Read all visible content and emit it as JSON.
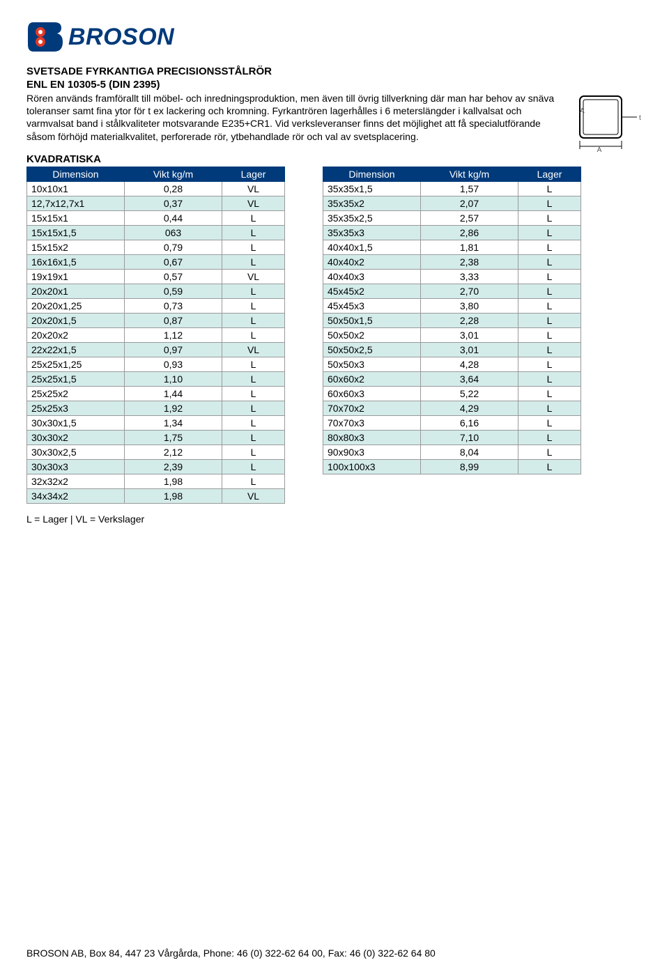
{
  "logo": {
    "text": "BROSON"
  },
  "title": "SVETSADE FYRKANTIGA PRECISIONSSTÅLRÖR",
  "subtitle": "ENL EN 10305-5 (DIN 2395)",
  "intro": "Rören används framförallt till möbel- och inredningsproduktion, men även till övrig tillverkning där man har behov av snäva toleranser samt fina ytor för t ex lackering och kromning. Fyrkantrören lagerhålles i 6 meterslängder i kallvalsat och varmvalsat band i stålkvaliteter motsvarande E235+CR1. Vid verksleveranser finns det möjlighet att få specialutförande såsom förhöjd materialkvalitet, perforerade rör, ytbehandlade rör och val av svetsplacering.",
  "sectionHead": "KVADRATISKA",
  "columns": {
    "dim": "Dimension",
    "vikt": "Vikt kg/m",
    "lager": "Lager"
  },
  "legend": "L = Lager | VL = Verkslager",
  "footer": "BROSON AB, Box 84, 447 23 Vårgårda, Phone:  46 (0) 322-62 64 00, Fax:  46 (0) 322-62 64 80",
  "colors": {
    "headerBg": "#003a7a",
    "headerText": "#ffffff",
    "altRow": "#d3ecea",
    "border": "#999999"
  },
  "diagramLabels": {
    "a": "A",
    "t": "t"
  },
  "leftRows": [
    {
      "dim": "10x10x1",
      "vikt": "0,28",
      "lager": "VL"
    },
    {
      "dim": "12,7x12,7x1",
      "vikt": "0,37",
      "lager": "VL"
    },
    {
      "dim": "15x15x1",
      "vikt": "0,44",
      "lager": "L"
    },
    {
      "dim": "15x15x1,5",
      "vikt": "063",
      "lager": "L"
    },
    {
      "dim": "15x15x2",
      "vikt": "0,79",
      "lager": "L"
    },
    {
      "dim": "16x16x1,5",
      "vikt": "0,67",
      "lager": "L"
    },
    {
      "dim": "19x19x1",
      "vikt": "0,57",
      "lager": "VL"
    },
    {
      "dim": "20x20x1",
      "vikt": "0,59",
      "lager": "L"
    },
    {
      "dim": "20x20x1,25",
      "vikt": "0,73",
      "lager": "L"
    },
    {
      "dim": "20x20x1,5",
      "vikt": "0,87",
      "lager": "L"
    },
    {
      "dim": "20x20x2",
      "vikt": "1,12",
      "lager": "L"
    },
    {
      "dim": "22x22x1,5",
      "vikt": "0,97",
      "lager": "VL"
    },
    {
      "dim": "25x25x1,25",
      "vikt": "0,93",
      "lager": "L"
    },
    {
      "dim": "25x25x1,5",
      "vikt": "1,10",
      "lager": "L"
    },
    {
      "dim": "25x25x2",
      "vikt": "1,44",
      "lager": "L"
    },
    {
      "dim": "25x25x3",
      "vikt": "1,92",
      "lager": "L"
    },
    {
      "dim": "30x30x1,5",
      "vikt": "1,34",
      "lager": "L"
    },
    {
      "dim": "30x30x2",
      "vikt": "1,75",
      "lager": "L"
    },
    {
      "dim": "30x30x2,5",
      "vikt": "2,12",
      "lager": "L"
    },
    {
      "dim": "30x30x3",
      "vikt": "2,39",
      "lager": "L"
    },
    {
      "dim": "32x32x2",
      "vikt": "1,98",
      "lager": "L"
    },
    {
      "dim": "34x34x2",
      "vikt": "1,98",
      "lager": "VL"
    }
  ],
  "rightRows": [
    {
      "dim": "35x35x1,5",
      "vikt": "1,57",
      "lager": "L"
    },
    {
      "dim": "35x35x2",
      "vikt": "2,07",
      "lager": "L"
    },
    {
      "dim": "35x35x2,5",
      "vikt": "2,57",
      "lager": "L"
    },
    {
      "dim": "35x35x3",
      "vikt": "2,86",
      "lager": "L"
    },
    {
      "dim": "40x40x1,5",
      "vikt": "1,81",
      "lager": "L"
    },
    {
      "dim": "40x40x2",
      "vikt": "2,38",
      "lager": "L"
    },
    {
      "dim": "40x40x3",
      "vikt": "3,33",
      "lager": "L"
    },
    {
      "dim": "45x45x2",
      "vikt": "2,70",
      "lager": "L"
    },
    {
      "dim": "45x45x3",
      "vikt": "3,80",
      "lager": "L"
    },
    {
      "dim": "50x50x1,5",
      "vikt": "2,28",
      "lager": "L"
    },
    {
      "dim": "50x50x2",
      "vikt": "3,01",
      "lager": "L"
    },
    {
      "dim": "50x50x2,5",
      "vikt": "3,01",
      "lager": "L"
    },
    {
      "dim": "50x50x3",
      "vikt": "4,28",
      "lager": "L"
    },
    {
      "dim": "60x60x2",
      "vikt": "3,64",
      "lager": "L"
    },
    {
      "dim": "60x60x3",
      "vikt": "5,22",
      "lager": "L"
    },
    {
      "dim": "70x70x2",
      "vikt": "4,29",
      "lager": "L"
    },
    {
      "dim": "70x70x3",
      "vikt": "6,16",
      "lager": "L"
    },
    {
      "dim": "80x80x3",
      "vikt": "7,10",
      "lager": "L"
    },
    {
      "dim": "90x90x3",
      "vikt": "8,04",
      "lager": "L"
    },
    {
      "dim": "100x100x3",
      "vikt": "8,99",
      "lager": "L"
    }
  ]
}
